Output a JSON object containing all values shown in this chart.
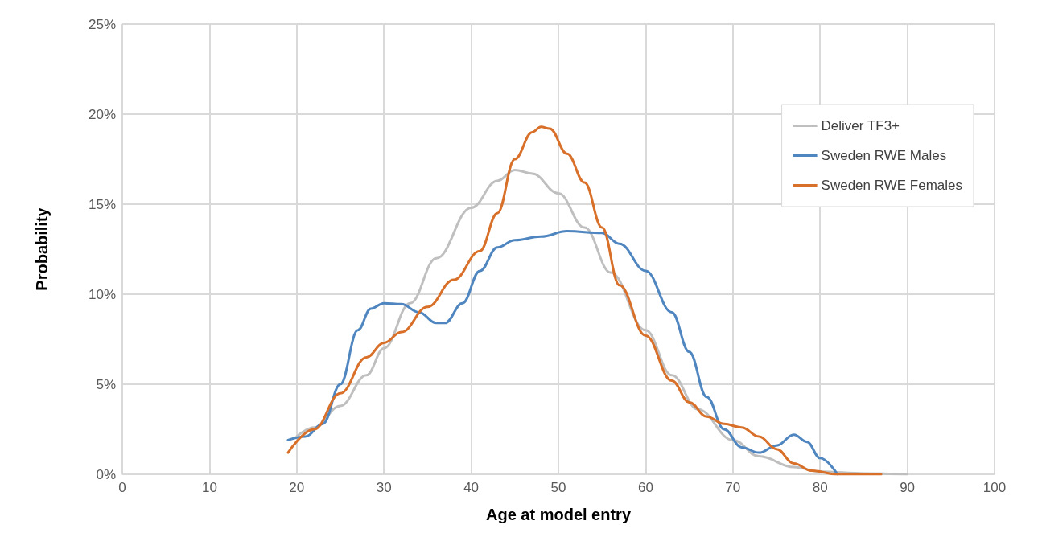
{
  "chart_data": {
    "type": "line",
    "xlabel": "Age at model entry",
    "ylabel": "Probability",
    "xlim": [
      0,
      100
    ],
    "xticks": [
      0,
      10,
      20,
      30,
      40,
      50,
      60,
      70,
      80,
      90,
      100
    ],
    "ylim": [
      0,
      25
    ],
    "yticks": [
      {
        "value": 0,
        "label": "0%"
      },
      {
        "value": 5,
        "label": "5%"
      },
      {
        "value": 10,
        "label": "10%"
      },
      {
        "value": 15,
        "label": "15%"
      },
      {
        "value": 20,
        "label": "20%"
      },
      {
        "value": 25,
        "label": "25%"
      }
    ],
    "grid": true,
    "legend": "top right",
    "marker": "none",
    "line_style": "solid",
    "series": [
      {
        "name": "Deliver TF3+",
        "color": "#bfbfbf",
        "x": [
          20,
          22,
          25,
          28,
          30,
          33,
          36,
          40,
          43,
          45,
          47,
          50,
          53,
          56,
          60,
          63,
          66,
          70,
          73,
          77,
          80,
          85,
          90
        ],
        "values": [
          2.1,
          2.6,
          3.8,
          5.5,
          7.0,
          9.5,
          12.0,
          14.8,
          16.3,
          16.9,
          16.7,
          15.6,
          13.7,
          11.2,
          8.0,
          5.5,
          3.6,
          1.9,
          1.0,
          0.4,
          0.15,
          0.05,
          0.0
        ]
      },
      {
        "name": "Sweden RWE Males",
        "color": "#4f86c0",
        "x": [
          19,
          21,
          23,
          25,
          27,
          28.5,
          30,
          32,
          34,
          36,
          37,
          39,
          41,
          43,
          45,
          48,
          51,
          55,
          57,
          60,
          63,
          65,
          67,
          69,
          71,
          73,
          75,
          77,
          78.5,
          80,
          82
        ],
        "values": [
          1.9,
          2.1,
          2.8,
          5.0,
          8.0,
          9.2,
          9.5,
          9.45,
          9.0,
          8.4,
          8.4,
          9.5,
          11.3,
          12.6,
          13.0,
          13.2,
          13.5,
          13.4,
          12.8,
          11.3,
          9.0,
          6.8,
          4.3,
          2.5,
          1.5,
          1.2,
          1.6,
          2.2,
          1.8,
          0.9,
          0.0
        ]
      },
      {
        "name": "Sweden RWE Females",
        "color": "#d8702a",
        "x": [
          19,
          22,
          25,
          28,
          30,
          32,
          35,
          38,
          41,
          43,
          45,
          47,
          48,
          49,
          51,
          53,
          55,
          57,
          60,
          63,
          65,
          67,
          69,
          71,
          73,
          75,
          77,
          79,
          82,
          87
        ],
        "values": [
          1.2,
          2.5,
          4.5,
          6.5,
          7.3,
          7.9,
          9.3,
          10.8,
          12.4,
          14.5,
          17.5,
          19.0,
          19.3,
          19.2,
          17.8,
          16.2,
          13.7,
          10.5,
          7.7,
          5.2,
          4.0,
          3.2,
          2.8,
          2.6,
          2.1,
          1.4,
          0.6,
          0.2,
          0.0,
          0.0
        ]
      }
    ]
  }
}
